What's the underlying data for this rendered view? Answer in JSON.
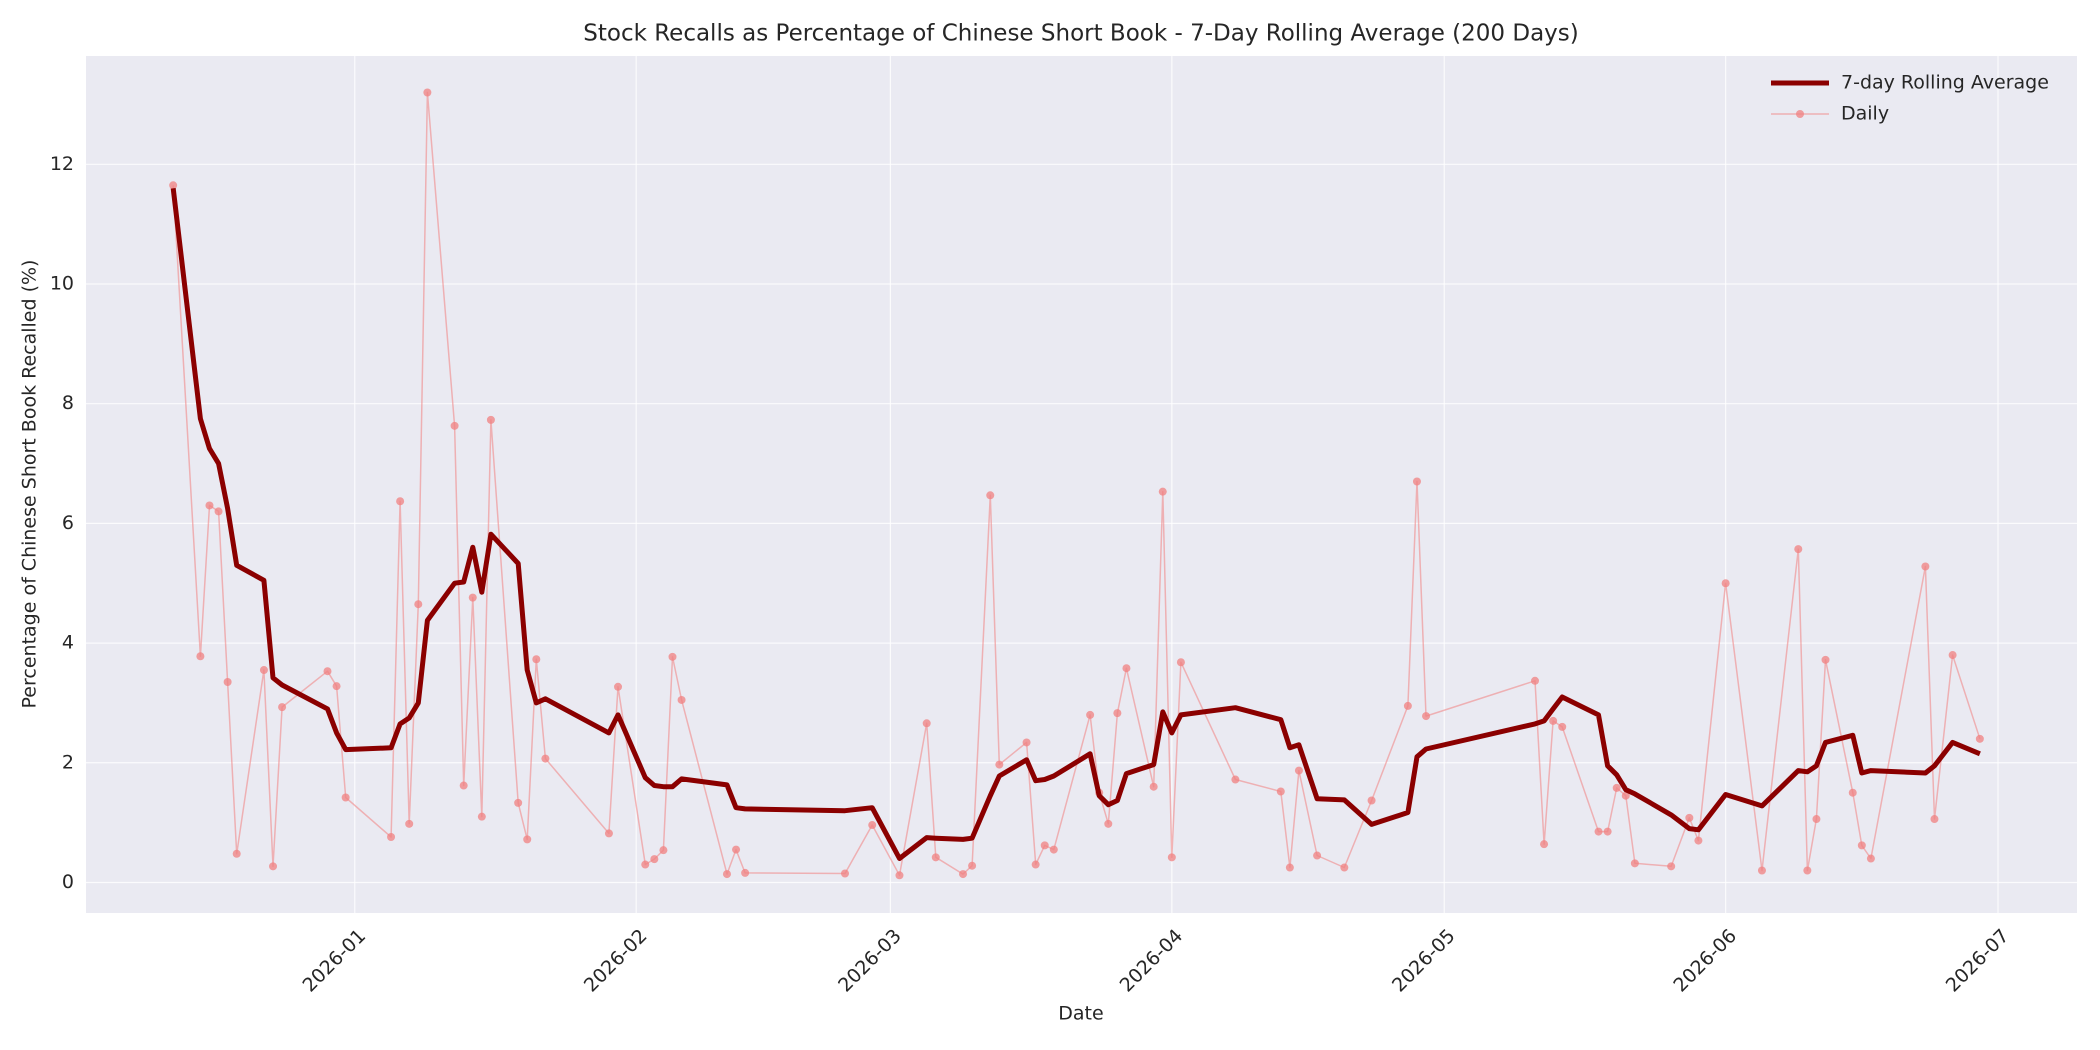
{
  "chart_data": {
    "type": "line",
    "title": "Stock Recalls as Percentage of Chinese Short Book - 7-Day Rolling Average (200 Days)",
    "xlabel": "Date",
    "ylabel": "Percentage of Chinese Short Book Recalled (%)",
    "x": [
      -20,
      -17,
      -16,
      -15,
      -14,
      -13,
      -10,
      -9,
      -8,
      -3,
      -2,
      -1,
      4,
      5,
      6,
      7,
      8,
      11,
      12,
      13,
      14,
      15,
      18,
      19,
      20,
      21,
      28,
      29,
      32,
      33,
      34,
      35,
      36,
      41,
      42,
      43,
      54,
      57,
      60,
      63,
      64,
      67,
      68,
      70,
      71,
      74,
      75,
      76,
      77,
      81,
      82,
      83,
      84,
      85,
      88,
      89,
      90,
      91,
      97,
      102,
      103,
      104,
      106,
      109,
      112,
      116,
      117,
      118,
      130,
      131,
      132,
      133,
      137,
      138,
      139,
      140,
      141,
      145,
      147,
      148,
      151,
      155,
      159,
      160,
      161,
      162,
      165,
      166,
      167,
      173,
      174,
      176,
      179
    ],
    "series": [
      {
        "name": "7-day Rolling Average",
        "color": "#8b0000",
        "line_width": 5,
        "marker": false,
        "values": [
          11.6,
          7.75,
          7.25,
          7.0,
          6.25,
          5.3,
          5.05,
          3.42,
          3.3,
          2.9,
          2.5,
          2.22,
          2.25,
          2.65,
          2.75,
          3.0,
          4.38,
          5.0,
          5.02,
          5.6,
          4.85,
          5.82,
          5.33,
          3.55,
          3.0,
          3.07,
          2.5,
          2.8,
          1.75,
          1.62,
          1.6,
          1.6,
          1.73,
          1.63,
          1.25,
          1.23,
          1.2,
          1.25,
          0.4,
          0.75,
          0.74,
          0.72,
          0.74,
          1.45,
          1.78,
          2.05,
          1.7,
          1.72,
          1.78,
          2.15,
          1.45,
          1.3,
          1.37,
          1.82,
          1.97,
          2.85,
          2.5,
          2.8,
          2.92,
          2.72,
          2.25,
          2.3,
          1.4,
          1.38,
          0.97,
          1.17,
          2.1,
          2.23,
          2.65,
          2.7,
          2.9,
          3.1,
          2.8,
          1.95,
          1.8,
          1.55,
          1.48,
          1.13,
          0.9,
          0.88,
          1.47,
          1.28,
          1.87,
          1.85,
          1.95,
          2.34,
          2.46,
          1.83,
          1.87,
          1.83,
          1.95,
          2.34,
          2.15
        ]
      },
      {
        "name": "Daily",
        "color": "#f08080",
        "line_width": 1.5,
        "marker": true,
        "values": [
          11.65,
          3.78,
          6.3,
          6.2,
          3.35,
          0.48,
          3.55,
          0.27,
          2.93,
          3.53,
          3.28,
          1.42,
          0.76,
          6.37,
          0.98,
          4.65,
          13.2,
          7.63,
          1.62,
          4.76,
          1.1,
          7.73,
          1.33,
          0.72,
          3.73,
          2.07,
          0.82,
          3.27,
          0.3,
          0.39,
          0.54,
          3.77,
          3.05,
          0.14,
          0.55,
          0.16,
          0.15,
          0.96,
          0.12,
          2.66,
          0.42,
          0.14,
          0.28,
          6.47,
          1.97,
          2.34,
          0.3,
          0.62,
          0.55,
          2.8,
          1.5,
          0.98,
          2.83,
          3.58,
          1.6,
          6.53,
          0.42,
          3.68,
          1.72,
          1.52,
          0.25,
          1.87,
          0.45,
          0.25,
          1.37,
          2.95,
          6.7,
          2.78,
          3.37,
          0.64,
          2.7,
          2.6,
          0.85,
          0.85,
          1.58,
          1.45,
          0.32,
          0.27,
          1.08,
          0.7,
          5.0,
          0.2,
          5.57,
          0.2,
          1.06,
          3.72,
          1.5,
          0.62,
          0.4,
          5.28,
          1.06,
          3.8,
          2.4
        ]
      }
    ],
    "xlim": [
      -29.6,
      189.7
    ],
    "xticks": [
      {
        "value": 0,
        "label": "2026-01"
      },
      {
        "value": 31,
        "label": "2026-02"
      },
      {
        "value": 59,
        "label": "2026-03"
      },
      {
        "value": 90,
        "label": "2026-04"
      },
      {
        "value": 120,
        "label": "2026-05"
      },
      {
        "value": 151,
        "label": "2026-06"
      },
      {
        "value": 181,
        "label": "2026-07"
      }
    ],
    "ylim": [
      -0.51,
      13.81
    ],
    "yticks": [
      0,
      2,
      4,
      6,
      8,
      10,
      12
    ],
    "grid": true,
    "legend": "upper right"
  }
}
